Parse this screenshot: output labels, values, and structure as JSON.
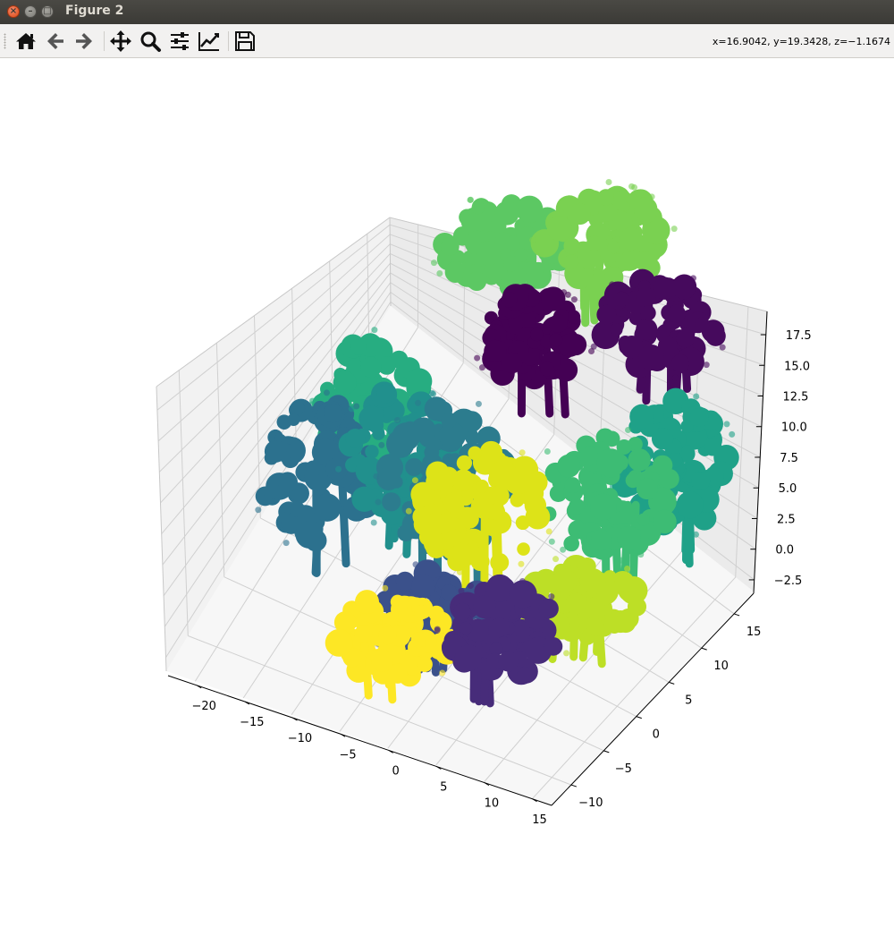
{
  "window": {
    "title": "Figure 2"
  },
  "toolbar": {
    "buttons": [
      {
        "name": "home",
        "icon": "home-icon"
      },
      {
        "name": "back",
        "icon": "arrow-left-icon"
      },
      {
        "name": "forward",
        "icon": "arrow-right-icon"
      },
      {
        "name": "pan",
        "icon": "move-icon"
      },
      {
        "name": "zoom",
        "icon": "magnifier-icon"
      },
      {
        "name": "subplots",
        "icon": "sliders-icon"
      },
      {
        "name": "customize",
        "icon": "line-chart-icon"
      },
      {
        "name": "save",
        "icon": "floppy-disk-icon"
      }
    ],
    "coordinates": "x=16.9042, y=19.3428, z=−1.1674"
  },
  "chart_data": {
    "type": "scatter",
    "projection": "3d",
    "grid": true,
    "x_ticks": [
      "−20",
      "−15",
      "−10",
      "−5",
      "0",
      "5",
      "10",
      "15"
    ],
    "y_ticks": [
      "−10",
      "−5",
      "0",
      "5",
      "10",
      "15"
    ],
    "z_ticks": [
      "−2.5",
      "0.0",
      "2.5",
      "5.0",
      "7.5",
      "10.0",
      "12.5",
      "15.0",
      "17.5"
    ],
    "colormap_colors": [
      "#440154",
      "#472c7a",
      "#3b518b",
      "#2c718e",
      "#21908d",
      "#27ad81",
      "#5cc863",
      "#aadc32",
      "#fde725"
    ],
    "clusters": [
      {
        "color": "#5cc863",
        "x": -6,
        "y": 12,
        "z_top": 15,
        "z_bottom": 8
      },
      {
        "color": "#7ad151",
        "x": 3,
        "y": 14,
        "z_top": 16.5,
        "z_bottom": 9
      },
      {
        "color": "#440154",
        "x": 0,
        "y": 8,
        "z_top": 13,
        "z_bottom": 6
      },
      {
        "color": "#460a5d",
        "x": 10,
        "y": 12,
        "z_top": 13,
        "z_bottom": 6
      },
      {
        "color": "#2c718e",
        "x": -15,
        "y": -2,
        "z_top": 9,
        "z_bottom": -2
      },
      {
        "color": "#27ad81",
        "x": -13,
        "y": 3,
        "z_top": 10,
        "z_bottom": 0
      },
      {
        "color": "#21908d",
        "x": -8,
        "y": 0,
        "z_top": 10,
        "z_bottom": 0
      },
      {
        "color": "#2c7c8e",
        "x": -3,
        "y": 0,
        "z_top": 10,
        "z_bottom": -2
      },
      {
        "color": "#dde318",
        "x": 2,
        "y": -2,
        "z_top": 10,
        "z_bottom": 1
      },
      {
        "color": "#3dbc74",
        "x": 12,
        "y": 2,
        "z_top": 10,
        "z_bottom": 1
      },
      {
        "color": "#1fa188",
        "x": 16,
        "y": 6,
        "z_top": 10,
        "z_bottom": 0
      },
      {
        "color": "#472c7a",
        "x": 7,
        "y": -6,
        "z_top": 4,
        "z_bottom": -3
      },
      {
        "color": "#fde725",
        "x": -3,
        "y": -8,
        "z_top": 2,
        "z_bottom": -3
      },
      {
        "color": "#bddf26",
        "x": 12,
        "y": -2,
        "z_top": 3,
        "z_bottom": -2
      },
      {
        "color": "#3b518b",
        "x": -1,
        "y": -6,
        "z_top": 3,
        "z_bottom": -3
      }
    ]
  }
}
